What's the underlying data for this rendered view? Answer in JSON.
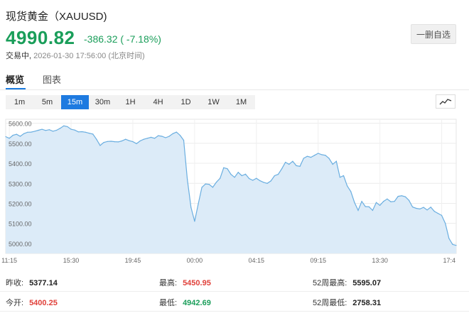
{
  "header": {
    "title": "现货黄金（XAUUSD)",
    "price": "4990.82",
    "change": "-386.32 ( -7.18%)",
    "status_prefix": "交易中,",
    "timestamp": "2026-01-30 17:56:00",
    "timezone": "(北京时间)",
    "remove_watch_label": "一删自选"
  },
  "tabs": [
    {
      "label": "概览",
      "active": true
    },
    {
      "label": "图表",
      "active": false
    }
  ],
  "periods": [
    {
      "label": "1m",
      "active": false
    },
    {
      "label": "5m",
      "active": false
    },
    {
      "label": "15m",
      "active": true
    },
    {
      "label": "30m",
      "active": false
    },
    {
      "label": "1H",
      "active": false
    },
    {
      "label": "4H",
      "active": false
    },
    {
      "label": "1D",
      "active": false
    },
    {
      "label": "1W",
      "active": false
    },
    {
      "label": "1M",
      "active": false
    }
  ],
  "chart_toggle_icon": "line-chart-icon",
  "colors": {
    "up": "#e0403a",
    "down": "#1a9e5a",
    "accent": "#1e7ae0",
    "line": "#6aaee0",
    "area": "#dcebf8"
  },
  "stats": {
    "prev_close": {
      "label": "昨收:",
      "value": "5377.14"
    },
    "high": {
      "label": "最高:",
      "value": "5450.95"
    },
    "high52": {
      "label": "52周最高:",
      "value": "5595.07"
    },
    "open": {
      "label": "今开:",
      "value": "5400.25"
    },
    "low": {
      "label": "最低:",
      "value": "4942.69"
    },
    "low52": {
      "label": "52周最低:",
      "value": "2758.31"
    }
  },
  "chart_data": {
    "type": "area",
    "ylim": [
      4950,
      5620
    ],
    "y_ticks": [
      5600,
      5500,
      5400,
      5300,
      5200,
      5100,
      5000
    ],
    "y_tick_labels": [
      "5600.00",
      "5500.00",
      "5400.00",
      "5300.00",
      "5200.00",
      "5100.00",
      "5000.00"
    ],
    "x_ticks": [
      "11:15",
      "15:30",
      "19:45",
      "00:00",
      "04:15",
      "09:15",
      "13:30",
      "17:4"
    ],
    "x_tick_pos": [
      1,
      18,
      35,
      52,
      69,
      86,
      103,
      120
    ],
    "values": [
      5533,
      5525,
      5540,
      5545,
      5535,
      5548,
      5555,
      5556,
      5560,
      5565,
      5570,
      5564,
      5568,
      5560,
      5565,
      5575,
      5587,
      5583,
      5570,
      5566,
      5557,
      5558,
      5555,
      5550,
      5546,
      5520,
      5489,
      5504,
      5509,
      5510,
      5508,
      5507,
      5512,
      5520,
      5513,
      5508,
      5498,
      5512,
      5520,
      5525,
      5530,
      5525,
      5538,
      5535,
      5528,
      5535,
      5548,
      5556,
      5540,
      5515,
      5320,
      5180,
      5110,
      5197,
      5280,
      5297,
      5295,
      5280,
      5306,
      5325,
      5378,
      5373,
      5345,
      5330,
      5355,
      5338,
      5346,
      5324,
      5315,
      5325,
      5313,
      5305,
      5300,
      5312,
      5338,
      5345,
      5373,
      5405,
      5395,
      5410,
      5388,
      5385,
      5425,
      5435,
      5430,
      5440,
      5450,
      5443,
      5440,
      5425,
      5395,
      5410,
      5330,
      5338,
      5287,
      5259,
      5205,
      5165,
      5210,
      5184,
      5183,
      5165,
      5204,
      5190,
      5210,
      5222,
      5208,
      5210,
      5235,
      5238,
      5233,
      5215,
      5182,
      5175,
      5172,
      5180,
      5167,
      5181,
      5160,
      5150,
      5140,
      5100,
      5025,
      4995,
      4990
    ]
  }
}
